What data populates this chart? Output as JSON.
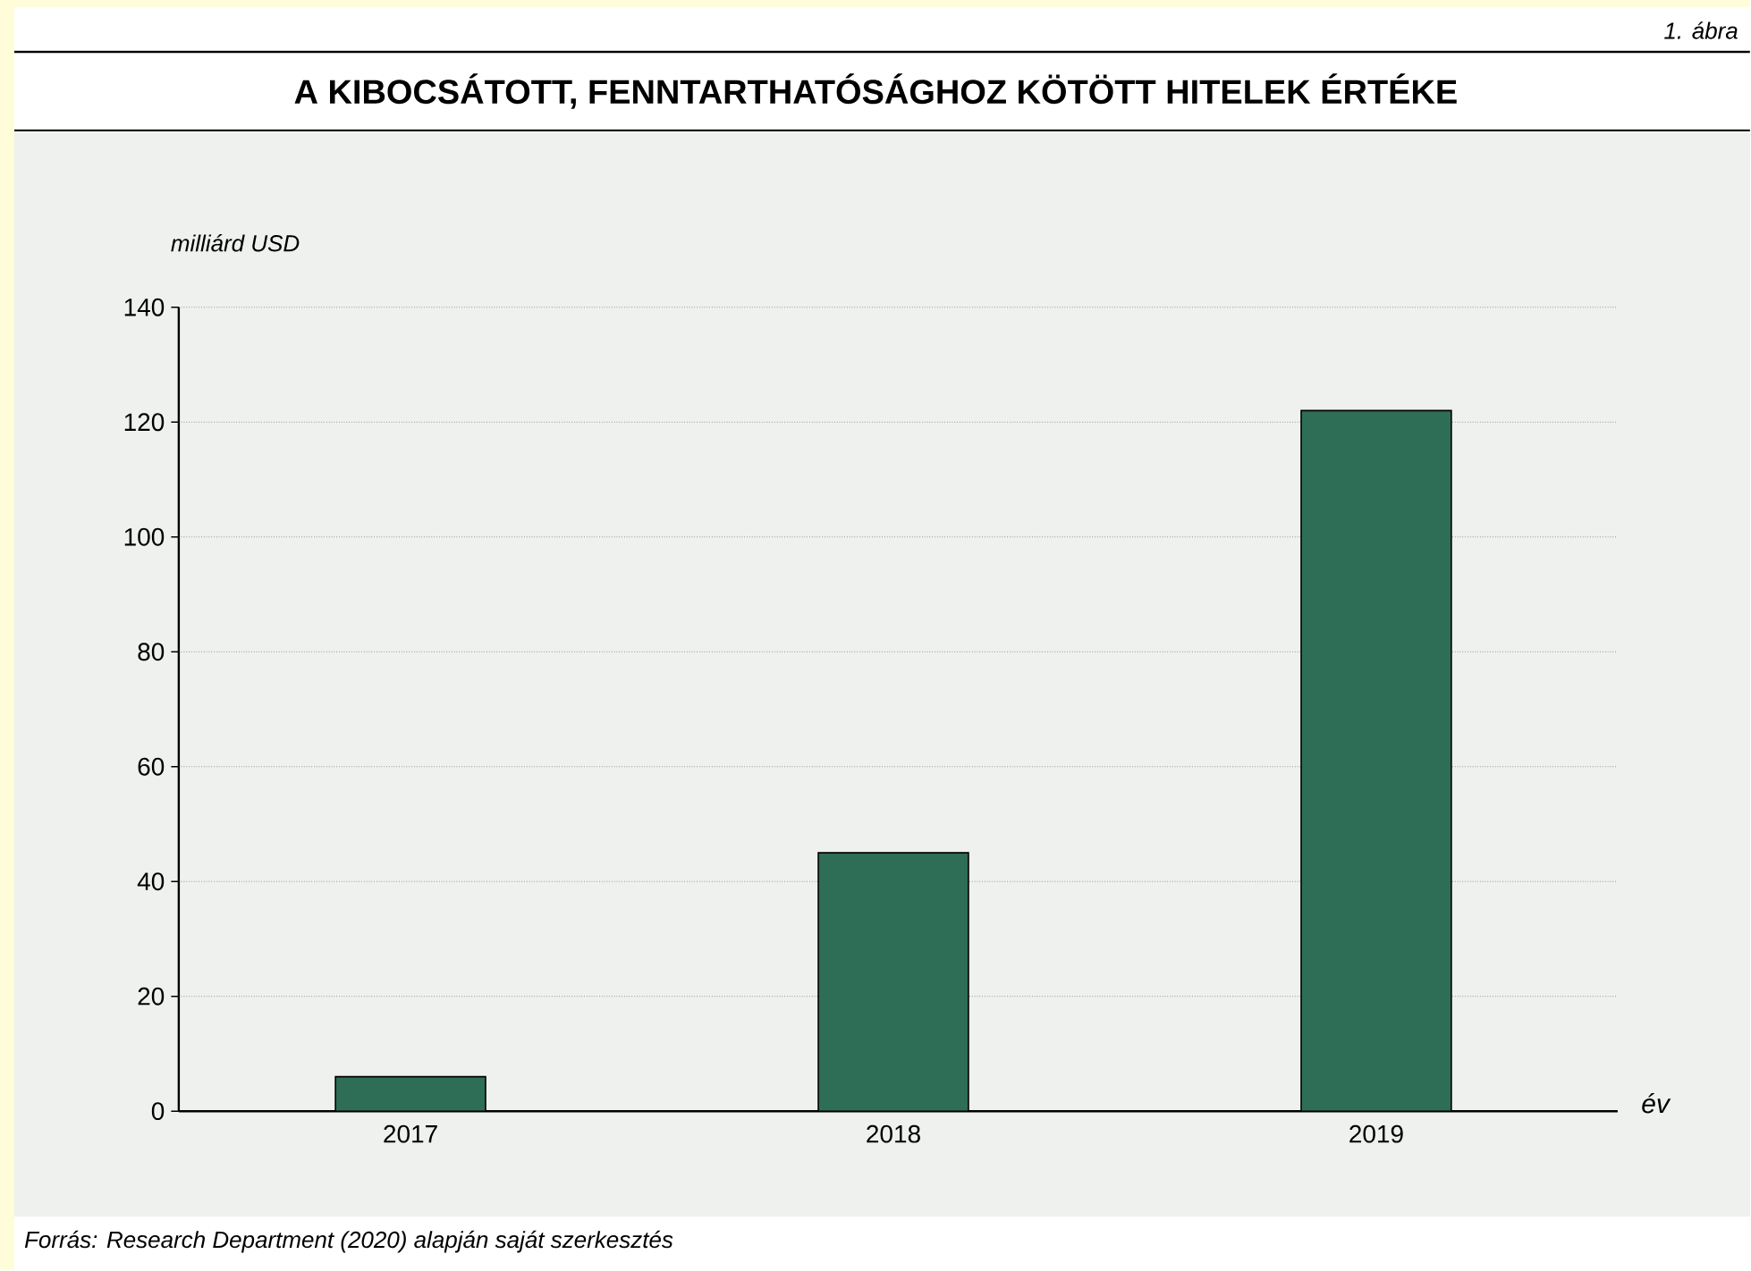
{
  "chart_data": {
    "type": "bar",
    "title": "A KIBOCSÁTOTT, FENNTARTHATÓSÁGHOZ KÖTÖTT HITELEK ÉRTÉKE",
    "subtitle": "1. ábra",
    "ylabel": "milliárd USD",
    "xlabel": "év",
    "categories": [
      "2017",
      "2018",
      "2019"
    ],
    "values": [
      6,
      45,
      122
    ],
    "color": "#2e6e56",
    "ylim": [
      0,
      140
    ],
    "yticks": [
      0,
      20,
      40,
      60,
      80,
      100,
      120,
      140
    ],
    "grid": "y",
    "annotations": [
      "Forrás: Research Department (2020) alapján saját szerkesztés"
    ]
  }
}
